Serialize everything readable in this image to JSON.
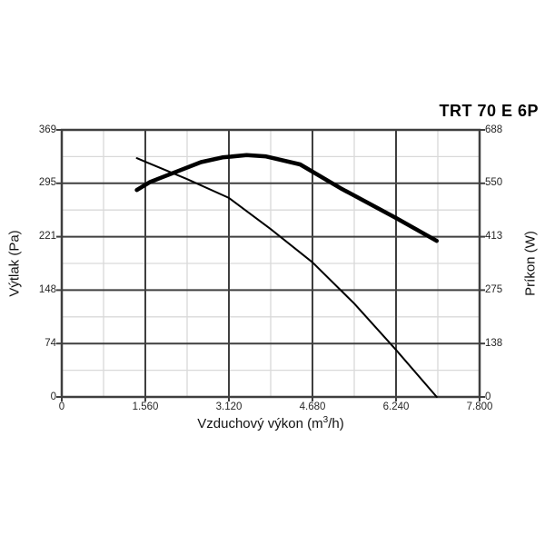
{
  "title": "TRT 70 E 6P",
  "chart_data": {
    "type": "line",
    "title": "TRT 70 E 6P",
    "xlabel": "Vzduchový výkon (m³/h)",
    "xlabel_parts": {
      "prefix": "Vzduchový výkon (m",
      "sup": "3",
      "suffix": "/h)"
    },
    "ylabel_left": "Výtlak (Pa)",
    "ylabel_right": "Príkon (W)",
    "x_range": [
      0,
      7800
    ],
    "y_left_range": [
      0,
      369
    ],
    "y_right_range": [
      0,
      688
    ],
    "x_ticks": [
      {
        "value": 0,
        "label": "0"
      },
      {
        "value": 1560,
        "label": "1.560"
      },
      {
        "value": 3120,
        "label": "3.120"
      },
      {
        "value": 4680,
        "label": "4.680"
      },
      {
        "value": 6240,
        "label": "6.240"
      },
      {
        "value": 7800,
        "label": "7.800"
      }
    ],
    "y_left_ticks": [
      {
        "value": 0,
        "label": "0"
      },
      {
        "value": 74,
        "label": "74"
      },
      {
        "value": 148,
        "label": "148"
      },
      {
        "value": 221,
        "label": "221"
      },
      {
        "value": 295,
        "label": "295"
      },
      {
        "value": 369,
        "label": "369"
      }
    ],
    "y_right_ticks": [
      {
        "value": 0,
        "label": "0"
      },
      {
        "value": 138,
        "label": "138"
      },
      {
        "value": 275,
        "label": "275"
      },
      {
        "value": 413,
        "label": "413"
      },
      {
        "value": 550,
        "label": "550"
      },
      {
        "value": 688,
        "label": "688"
      }
    ],
    "grid": {
      "major_color": "#3f3f3f",
      "minor_color": "#d9d9d9",
      "border_color": "#3f3f3f"
    },
    "legend_position": "none",
    "series": [
      {
        "name": "Výtlak (Pa)",
        "axis": "left",
        "color": "#000000",
        "stroke_width": 2,
        "points": [
          [
            1400,
            330
          ],
          [
            1560,
            325
          ],
          [
            2340,
            301
          ],
          [
            3120,
            275
          ],
          [
            3900,
            232
          ],
          [
            4680,
            186
          ],
          [
            5460,
            129
          ],
          [
            6240,
            65
          ],
          [
            7000,
            0
          ]
        ]
      },
      {
        "name": "Príkon (W)",
        "axis": "right",
        "color": "#000000",
        "stroke_width": 4.5,
        "points": [
          [
            1400,
            533
          ],
          [
            1650,
            554
          ],
          [
            2600,
            605
          ],
          [
            3000,
            617
          ],
          [
            3450,
            623
          ],
          [
            3800,
            620
          ],
          [
            4450,
            599
          ],
          [
            5200,
            538
          ],
          [
            6240,
            461
          ],
          [
            7000,
            402
          ]
        ]
      }
    ]
  }
}
